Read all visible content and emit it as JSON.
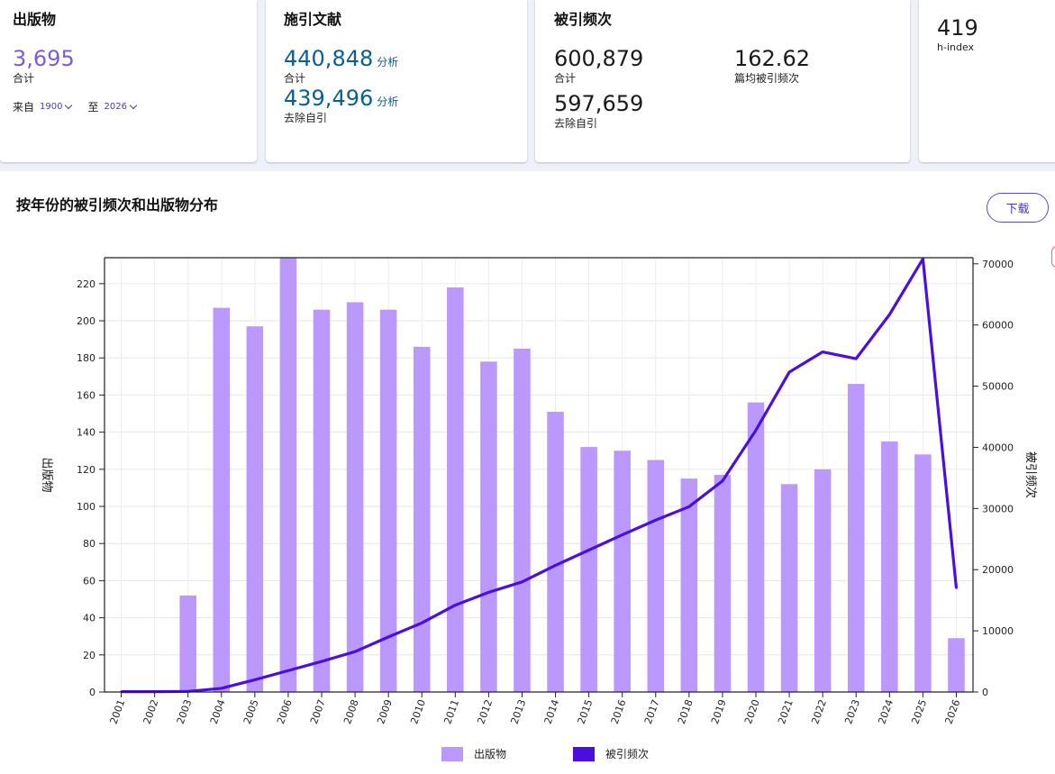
{
  "cards": {
    "publications": {
      "title": "出版物",
      "count": "3,695",
      "count_label": "合计",
      "range_from_label": "来自",
      "range_from": "1900",
      "range_to_label": "至",
      "range_to": "2026"
    },
    "citing": {
      "title": "施引文献",
      "total": "440,848",
      "total_label": "合计",
      "analysis": "分析",
      "excl": "439,496",
      "excl_label": "去除自引",
      "analysis2": "分析"
    },
    "citations": {
      "title": "被引频次",
      "total": "600,879",
      "total_label": "合计",
      "avg": "162.62",
      "avg_label": "篇均被引频次",
      "excl": "597,659",
      "excl_label": "去除自引"
    },
    "hindex": {
      "value": "419",
      "label": "h-index"
    }
  },
  "chart_title": "按年份的被引频次和出版物分布",
  "download_label": "下载",
  "colors": {
    "bar": "#bb98fb",
    "line": "#4a0fe0",
    "accent": "#7c5cd6"
  },
  "chart_data": {
    "type": "bar",
    "categories": [
      "2001",
      "2002",
      "2003",
      "2004",
      "2005",
      "2006",
      "2007",
      "2008",
      "2009",
      "2010",
      "2011",
      "2012",
      "2013",
      "2014",
      "2015",
      "2016",
      "2017",
      "2018",
      "2019",
      "2020",
      "2021",
      "2022",
      "2023",
      "2024",
      "2025",
      "2026"
    ],
    "series": [
      {
        "name": "出版物",
        "type": "bar",
        "axis": "left",
        "values": [
          0,
          0,
          52,
          207,
          197,
          234,
          206,
          210,
          206,
          186,
          218,
          178,
          185,
          151,
          132,
          130,
          125,
          115,
          117,
          156,
          112,
          120,
          166,
          135,
          128,
          29
        ]
      },
      {
        "name": "被引频次",
        "type": "line",
        "axis": "right",
        "values": [
          50,
          60,
          100,
          600,
          2000,
          3500,
          5000,
          6600,
          9000,
          11300,
          14200,
          16300,
          18000,
          20700,
          23200,
          25700,
          28100,
          30300,
          34500,
          42800,
          52300,
          55600,
          54500,
          61700,
          70800,
          17000
        ]
      }
    ],
    "ylabel": "出版物",
    "y2label": "被引频次",
    "ylim": [
      0,
      234
    ],
    "y2lim": [
      0,
      71000
    ],
    "yticks": [
      0,
      20,
      40,
      60,
      80,
      100,
      120,
      140,
      160,
      180,
      200,
      220
    ],
    "y2ticks": [
      0,
      10000,
      20000,
      30000,
      40000,
      50000,
      60000,
      70000
    ],
    "grid": true,
    "legend": "bottom"
  }
}
